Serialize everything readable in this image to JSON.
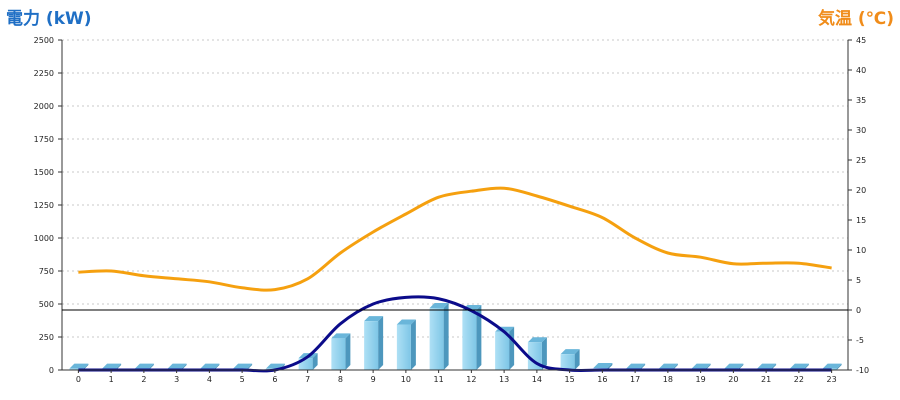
{
  "chart_data": {
    "type": "bar+line",
    "ylabel_left": "電力 (kW)",
    "ylabel_right": "気温 (℃)",
    "categories": [
      "0",
      "1",
      "2",
      "3",
      "4",
      "5",
      "6",
      "7",
      "8",
      "9",
      "10",
      "11",
      "12",
      "13",
      "14",
      "15",
      "16",
      "17",
      "18",
      "19",
      "20",
      "21",
      "22",
      "23"
    ],
    "left_axis": {
      "min": 0,
      "max": 2500,
      "ticks": [
        "0",
        "250",
        "500",
        "750",
        "1000",
        "1250",
        "1500",
        "1750",
        "2000",
        "2250",
        "2500"
      ]
    },
    "right_axis": {
      "min": -10,
      "max": 45,
      "ticks": [
        "-10",
        "-5",
        "0",
        "5",
        "10",
        "15",
        "20",
        "25",
        "30",
        "35",
        "40",
        "45"
      ]
    },
    "series": [
      {
        "kind": "bar",
        "axis": "left",
        "color": "#87ceeb",
        "values": [
          10,
          10,
          10,
          10,
          10,
          10,
          10,
          90,
          240,
          370,
          345,
          470,
          455,
          290,
          210,
          120,
          15,
          10,
          10,
          10,
          10,
          10,
          10,
          10
        ]
      },
      {
        "kind": "line",
        "axis": "left",
        "color": "#0b0b8a",
        "values": [
          0,
          0,
          0,
          0,
          0,
          0,
          0,
          100,
          350,
          500,
          550,
          540,
          450,
          290,
          50,
          0,
          0,
          0,
          0,
          0,
          0,
          0,
          0,
          0
        ]
      },
      {
        "kind": "line",
        "axis": "right",
        "color": "#f5a00f",
        "values": [
          6.3,
          6.5,
          5.7,
          5.2,
          4.7,
          3.7,
          3.4,
          5.2,
          9.5,
          13,
          16,
          18.8,
          19.8,
          20.3,
          19,
          17.3,
          15.4,
          12,
          9.5,
          8.8,
          7.7,
          7.8,
          7.8,
          7.0
        ]
      }
    ],
    "grid": "horizontal-dotted",
    "baseline_right_value": 0
  }
}
